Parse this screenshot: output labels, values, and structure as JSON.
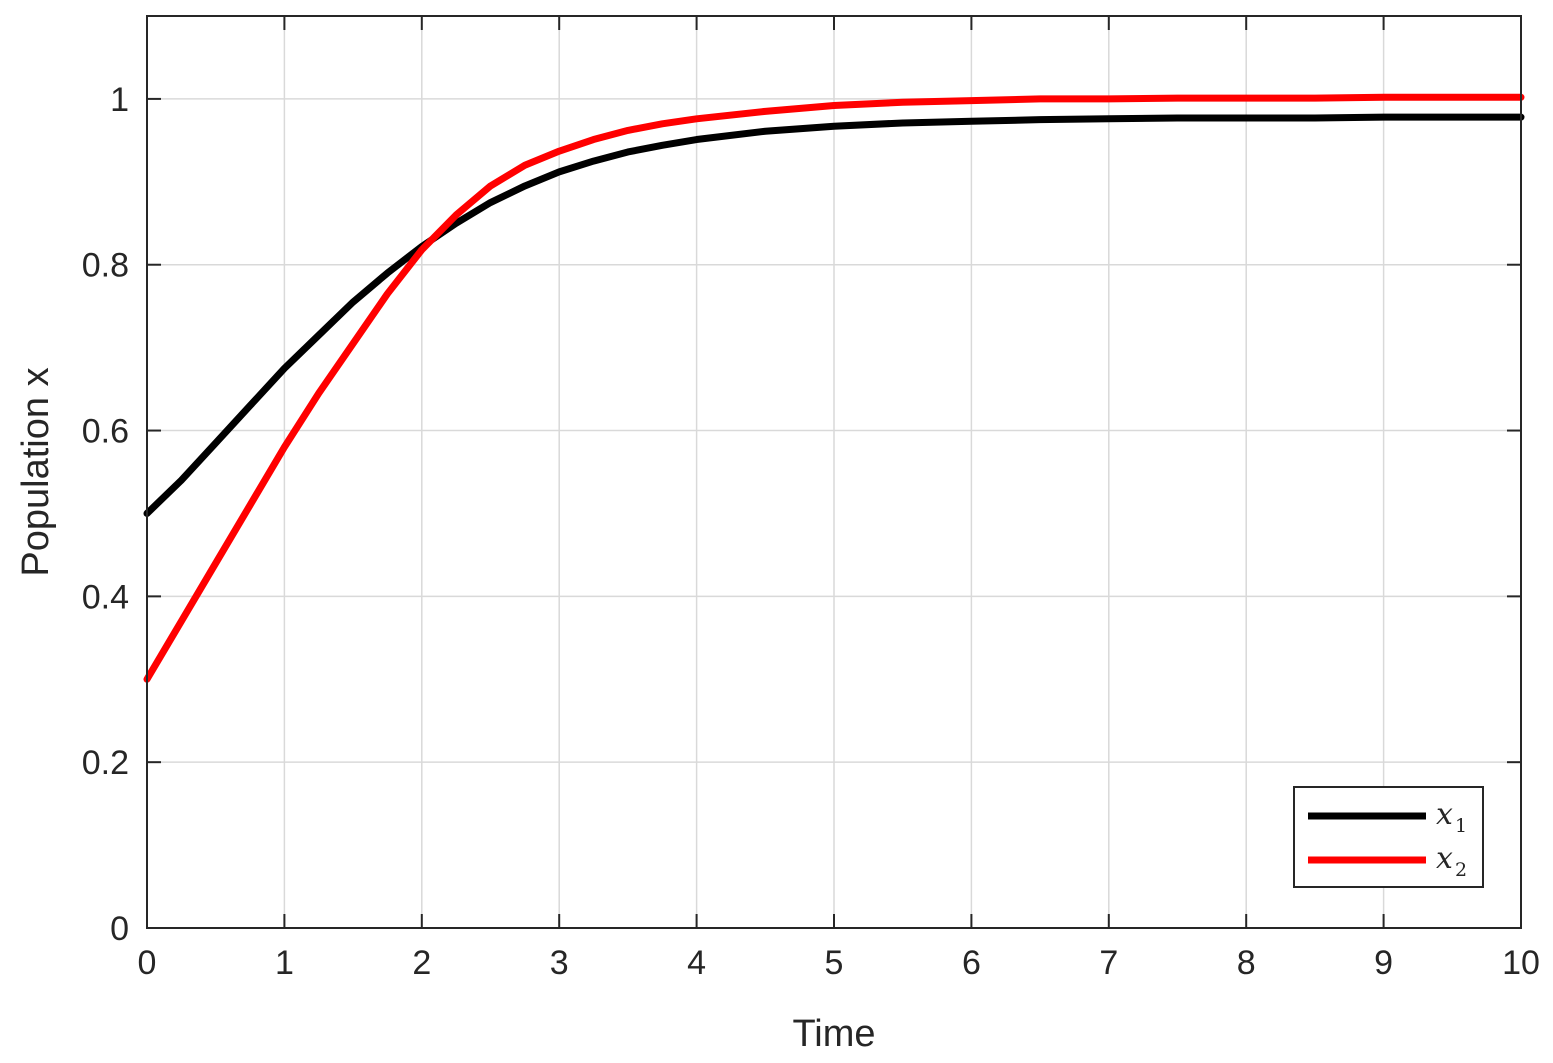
{
  "chart_data": {
    "type": "line",
    "title": "",
    "xlabel": "Time",
    "ylabel": "Population x",
    "xlim": [
      0,
      10
    ],
    "ylim": [
      0,
      1.1
    ],
    "xticks": [
      0,
      1,
      2,
      3,
      4,
      5,
      6,
      7,
      8,
      9,
      10
    ],
    "xtick_labels": [
      "0",
      "1",
      "2",
      "3",
      "4",
      "5",
      "6",
      "7",
      "8",
      "9",
      "10"
    ],
    "yticks": [
      0,
      0.2,
      0.4,
      0.6,
      0.8,
      1
    ],
    "ytick_labels": [
      "0",
      "0.2",
      "0.4",
      "0.6",
      "0.8",
      "1"
    ],
    "grid": true,
    "legend_position": "bottom-right",
    "x": [
      0,
      0.25,
      0.5,
      0.75,
      1,
      1.25,
      1.5,
      1.75,
      2,
      2.25,
      2.5,
      2.75,
      3,
      3.25,
      3.5,
      3.75,
      4,
      4.5,
      5,
      5.5,
      6,
      6.5,
      7,
      7.5,
      8,
      8.5,
      9,
      9.5,
      10
    ],
    "series": [
      {
        "name": "x",
        "subscript": "1",
        "color": "#000000",
        "values": [
          0.5,
          0.54,
          0.585,
          0.63,
          0.675,
          0.715,
          0.755,
          0.79,
          0.822,
          0.85,
          0.875,
          0.895,
          0.912,
          0.925,
          0.936,
          0.944,
          0.951,
          0.961,
          0.967,
          0.971,
          0.973,
          0.975,
          0.976,
          0.977,
          0.977,
          0.977,
          0.978,
          0.978,
          0.978
        ]
      },
      {
        "name": "x",
        "subscript": "2",
        "color": "#ff0000",
        "values": [
          0.3,
          0.37,
          0.44,
          0.51,
          0.58,
          0.645,
          0.705,
          0.765,
          0.818,
          0.86,
          0.895,
          0.92,
          0.937,
          0.951,
          0.962,
          0.97,
          0.976,
          0.985,
          0.992,
          0.996,
          0.998,
          1.0,
          1.0,
          1.001,
          1.001,
          1.001,
          1.002,
          1.002,
          1.002
        ]
      }
    ]
  }
}
